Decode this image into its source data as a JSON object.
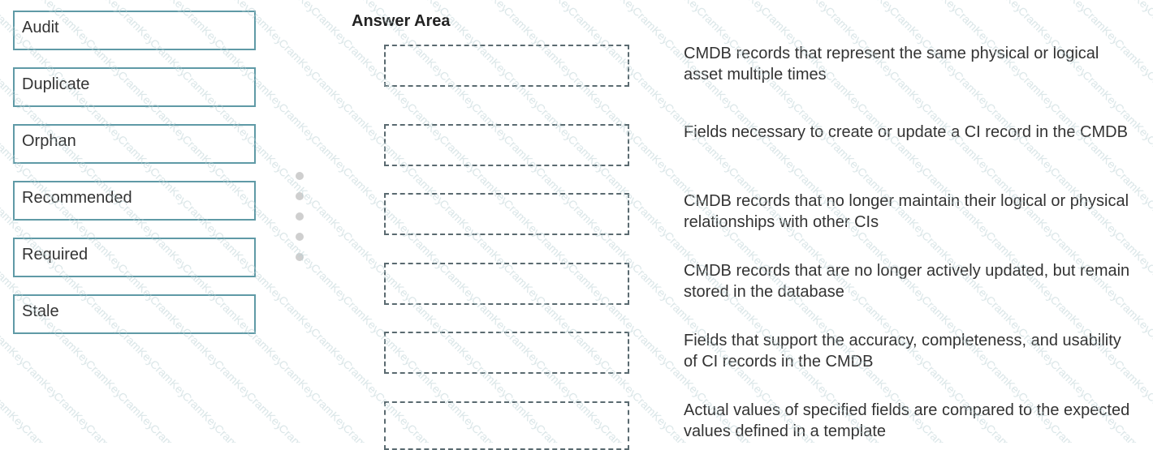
{
  "watermark": "CramKey",
  "options": [
    "Audit",
    "Duplicate",
    "Orphan",
    "Recommended",
    "Required",
    "Stale"
  ],
  "answer_area": {
    "title": "Answer Area",
    "descriptions": [
      "CMDB records that represent the same physical or logical asset multiple times",
      "Fields necessary to create or update a CI record in the CMDB",
      "CMDB records that no longer maintain their logical or physical relationships with other CIs",
      "CMDB records that are no longer actively updated, but remain stored in the database",
      "Fields that support the accuracy, completeness, and usability of CI records in the CMDB",
      "Actual values of specified fields are compared to the expected values defined in a template"
    ]
  },
  "colors": {
    "option_border": "#5f9aa6",
    "slot_border": "#5a6a70"
  }
}
